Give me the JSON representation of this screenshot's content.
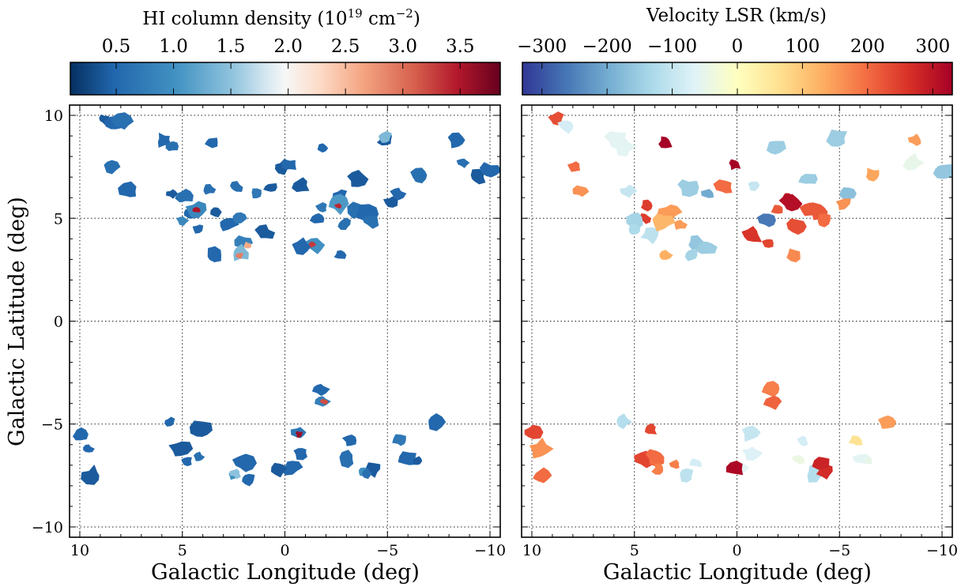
{
  "chart_data": [
    {
      "type": "scatter",
      "panel": "left",
      "xlabel": "Galactic Longitude (deg)",
      "ylabel": "Galactic Latitude (deg)",
      "xlim": [
        10.5,
        -10.5
      ],
      "ylim": [
        -10.5,
        10.5
      ],
      "xticks": [
        10,
        5,
        0,
        -5,
        -10
      ],
      "yticks": [
        10,
        5,
        0,
        -5,
        -10
      ],
      "grid": true,
      "colorbar": {
        "title_main": "HI column density (10",
        "title_sup1": "19",
        "title_mid": " cm",
        "title_sup2": "−2",
        "title_end": ")",
        "colormap": "RdBu_r",
        "range": [
          0.1,
          3.85
        ],
        "ticks": [
          0.5,
          1.0,
          1.5,
          2.0,
          2.5,
          3.0,
          3.5
        ],
        "tick_labels": [
          "0.5",
          "1.0",
          "1.5",
          "2.0",
          "2.5",
          "3.0",
          "3.5"
        ]
      },
      "clouds": [
        {
          "l": 8.8,
          "b": 9.8,
          "nh": 0.4
        },
        {
          "l": 8.3,
          "b": 9.6,
          "nh": 0.5
        },
        {
          "l": 7.9,
          "b": 9.7,
          "nh": 0.6
        },
        {
          "l": 5.9,
          "b": 8.8,
          "nh": 0.5
        },
        {
          "l": 5.5,
          "b": 8.5,
          "nh": 0.6
        },
        {
          "l": 3.6,
          "b": 8.7,
          "nh": 0.5
        },
        {
          "l": 8.5,
          "b": 7.5,
          "nh": 0.6
        },
        {
          "l": 7.6,
          "b": 6.3,
          "nh": 0.5
        },
        {
          "l": 5.5,
          "b": 6.2,
          "nh": 0.4
        },
        {
          "l": 4.9,
          "b": 6.1,
          "nh": 0.6
        },
        {
          "l": 4.7,
          "b": 5.2,
          "nh": 0.5
        },
        {
          "l": 4.3,
          "b": 5.4,
          "nh": 0.9
        },
        {
          "l": 4.3,
          "b": 5.4,
          "nh": 3.5
        },
        {
          "l": 5.0,
          "b": 4.9,
          "nh": 0.9
        },
        {
          "l": 4.2,
          "b": 4.5,
          "nh": 0.5
        },
        {
          "l": 3.3,
          "b": 5.3,
          "nh": 0.4
        },
        {
          "l": 3.7,
          "b": 6.4,
          "nh": 0.6
        },
        {
          "l": 2.4,
          "b": 6.5,
          "nh": 0.6
        },
        {
          "l": 2.8,
          "b": 4.7,
          "nh": 0.5
        },
        {
          "l": 2.2,
          "b": 5.0,
          "nh": 0.7
        },
        {
          "l": 1.4,
          "b": 6.2,
          "nh": 0.7
        },
        {
          "l": 0.7,
          "b": 6.5,
          "nh": 0.4
        },
        {
          "l": 2.0,
          "b": 3.8,
          "nh": 0.8
        },
        {
          "l": 1.8,
          "b": 3.7,
          "nh": 2.6
        },
        {
          "l": 2.2,
          "b": 3.3,
          "nh": 1.4
        },
        {
          "l": 2.2,
          "b": 3.2,
          "nh": 2.9
        },
        {
          "l": 3.5,
          "b": 3.2,
          "nh": 0.5
        },
        {
          "l": 1.0,
          "b": 4.3,
          "nh": 0.4
        },
        {
          "l": 0.1,
          "b": 7.5,
          "nh": 0.4
        },
        {
          "l": -0.2,
          "b": 7.6,
          "nh": 0.5
        },
        {
          "l": -1.8,
          "b": 8.4,
          "nh": 0.5
        },
        {
          "l": -0.8,
          "b": 6.6,
          "nh": 0.4
        },
        {
          "l": -1.8,
          "b": 5.5,
          "nh": 0.7
        },
        {
          "l": -2.7,
          "b": 6.1,
          "nh": 0.5
        },
        {
          "l": -2.6,
          "b": 5.7,
          "nh": 1.1
        },
        {
          "l": -2.6,
          "b": 5.6,
          "nh": 3.4
        },
        {
          "l": -1.6,
          "b": 5.0,
          "nh": 0.5
        },
        {
          "l": -1.5,
          "b": 3.7,
          "nh": 1.0
        },
        {
          "l": -1.3,
          "b": 3.7,
          "nh": 3.3
        },
        {
          "l": -0.8,
          "b": 3.6,
          "nh": 0.5
        },
        {
          "l": -2.7,
          "b": 3.2,
          "nh": 0.5
        },
        {
          "l": -3.5,
          "b": 6.9,
          "nh": 0.4
        },
        {
          "l": -3.6,
          "b": 5.4,
          "nh": 0.6
        },
        {
          "l": -4.0,
          "b": 5.2,
          "nh": 0.5
        },
        {
          "l": -2.9,
          "b": 4.7,
          "nh": 0.6
        },
        {
          "l": -4.2,
          "b": 4.9,
          "nh": 0.6
        },
        {
          "l": -5.2,
          "b": 5.8,
          "nh": 0.4
        },
        {
          "l": -5.5,
          "b": 6.2,
          "nh": 0.5
        },
        {
          "l": -4.9,
          "b": 8.8,
          "nh": 0.4
        },
        {
          "l": -4.9,
          "b": 8.9,
          "nh": 1.4
        },
        {
          "l": -6.6,
          "b": 7.1,
          "nh": 0.6
        },
        {
          "l": -8.4,
          "b": 8.8,
          "nh": 0.5
        },
        {
          "l": -8.7,
          "b": 7.7,
          "nh": 0.6
        },
        {
          "l": -9.4,
          "b": 7.0,
          "nh": 0.4
        },
        {
          "l": -10.0,
          "b": 7.3,
          "nh": 0.5
        },
        {
          "l": -1.7,
          "b": -3.3,
          "nh": 0.5
        },
        {
          "l": -1.8,
          "b": -3.9,
          "nh": 0.8
        },
        {
          "l": -1.9,
          "b": -3.9,
          "nh": 3.2
        },
        {
          "l": -0.7,
          "b": -5.4,
          "nh": 0.7
        },
        {
          "l": -0.7,
          "b": -5.5,
          "nh": 3.6
        },
        {
          "l": -0.8,
          "b": -6.4,
          "nh": 0.5
        },
        {
          "l": -0.3,
          "b": -7.1,
          "nh": 0.5
        },
        {
          "l": 0.3,
          "b": -7.2,
          "nh": 0.4
        },
        {
          "l": 10.0,
          "b": -5.5,
          "nh": 0.5
        },
        {
          "l": 9.6,
          "b": -6.2,
          "nh": 0.5
        },
        {
          "l": 9.4,
          "b": -7.5,
          "nh": 0.4
        },
        {
          "l": 5.6,
          "b": -4.9,
          "nh": 0.5
        },
        {
          "l": 5.1,
          "b": -6.2,
          "nh": 0.4
        },
        {
          "l": 4.8,
          "b": -6.8,
          "nh": 0.5
        },
        {
          "l": 4.2,
          "b": -6.6,
          "nh": 0.6
        },
        {
          "l": 4.1,
          "b": -5.3,
          "nh": 0.4
        },
        {
          "l": 2.5,
          "b": -7.5,
          "nh": 1.0
        },
        {
          "l": 2.4,
          "b": -7.4,
          "nh": 1.5
        },
        {
          "l": 2.0,
          "b": -6.9,
          "nh": 0.5
        },
        {
          "l": 1.8,
          "b": -7.7,
          "nh": 0.5
        },
        {
          "l": -3.0,
          "b": -6.7,
          "nh": 0.6
        },
        {
          "l": -3.2,
          "b": -5.8,
          "nh": 0.5
        },
        {
          "l": -3.8,
          "b": -7.3,
          "nh": 1.0
        },
        {
          "l": -4.3,
          "b": -7.2,
          "nh": 0.4
        },
        {
          "l": -4.0,
          "b": -7.4,
          "nh": 0.6
        },
        {
          "l": -5.6,
          "b": -5.8,
          "nh": 0.7
        },
        {
          "l": -6.0,
          "b": -6.7,
          "nh": 0.5
        },
        {
          "l": -7.3,
          "b": -4.9,
          "nh": 0.5
        },
        {
          "l": -6.5,
          "b": -6.8,
          "nh": 0.4
        }
      ]
    },
    {
      "type": "scatter",
      "panel": "right",
      "xlabel": "Galactic Longitude (deg)",
      "ylabel": "",
      "xlim": [
        10.5,
        -10.5
      ],
      "ylim": [
        -10.5,
        10.5
      ],
      "xticks": [
        10,
        5,
        0,
        -5,
        -10
      ],
      "yticks": [
        10,
        5,
        0,
        -5,
        -10
      ],
      "grid": true,
      "colorbar": {
        "title": "Velocity LSR (km/s)",
        "colormap": "RdYlBu_r",
        "range": [
          -330,
          330
        ],
        "ticks": [
          -300,
          -200,
          -100,
          0,
          100,
          200,
          300
        ],
        "tick_labels": [
          "−300",
          "−200",
          "−100",
          "0",
          "100",
          "200",
          "300"
        ]
      },
      "clouds": [
        {
          "l": 8.8,
          "b": 9.8,
          "v": 230
        },
        {
          "l": 8.3,
          "b": 9.5,
          "v": -80
        },
        {
          "l": 5.9,
          "b": 8.8,
          "v": -60
        },
        {
          "l": 5.5,
          "b": 8.5,
          "v": -60
        },
        {
          "l": 3.5,
          "b": 8.7,
          "v": 330
        },
        {
          "l": 7.6,
          "b": 6.3,
          "v": 160
        },
        {
          "l": 7.9,
          "b": 7.5,
          "v": 200
        },
        {
          "l": 4.4,
          "b": 5.6,
          "v": 250
        },
        {
          "l": 4.5,
          "b": 5.0,
          "v": 250
        },
        {
          "l": 4.9,
          "b": 4.9,
          "v": -140
        },
        {
          "l": 5.0,
          "b": 4.4,
          "v": -130
        },
        {
          "l": 4.2,
          "b": 4.2,
          "v": -110
        },
        {
          "l": 5.3,
          "b": 6.3,
          "v": -100
        },
        {
          "l": 3.3,
          "b": 5.3,
          "v": 150
        },
        {
          "l": 3.6,
          "b": 4.8,
          "v": 120
        },
        {
          "l": 2.8,
          "b": 4.7,
          "v": 150
        },
        {
          "l": 2.4,
          "b": 6.5,
          "v": -150
        },
        {
          "l": 1.4,
          "b": 6.2,
          "v": -200
        },
        {
          "l": 0.6,
          "b": 6.5,
          "v": 200
        },
        {
          "l": 2.0,
          "b": 3.8,
          "v": -160
        },
        {
          "l": 2.2,
          "b": 3.2,
          "v": -140
        },
        {
          "l": 1.5,
          "b": 3.6,
          "v": -150
        },
        {
          "l": 3.5,
          "b": 3.2,
          "v": 130
        },
        {
          "l": 0.1,
          "b": 7.6,
          "v": 330
        },
        {
          "l": -1.8,
          "b": 8.4,
          "v": -150
        },
        {
          "l": -2.0,
          "b": 5.4,
          "v": 220
        },
        {
          "l": -2.5,
          "b": 6.0,
          "v": 300
        },
        {
          "l": -2.6,
          "b": 5.7,
          "v": 310
        },
        {
          "l": -1.5,
          "b": 3.8,
          "v": 240
        },
        {
          "l": -0.7,
          "b": 4.2,
          "v": 260
        },
        {
          "l": -0.8,
          "b": 6.6,
          "v": -100
        },
        {
          "l": -1.5,
          "b": 4.9,
          "v": -260
        },
        {
          "l": -2.8,
          "b": 3.2,
          "v": 170
        },
        {
          "l": -3.5,
          "b": 6.9,
          "v": -150
        },
        {
          "l": -3.5,
          "b": 5.4,
          "v": 220
        },
        {
          "l": -4.0,
          "b": 5.3,
          "v": 220
        },
        {
          "l": -2.9,
          "b": 4.6,
          "v": 230
        },
        {
          "l": -4.2,
          "b": 4.9,
          "v": 200
        },
        {
          "l": -5.4,
          "b": 6.2,
          "v": -170
        },
        {
          "l": -5.2,
          "b": 5.7,
          "v": 160
        },
        {
          "l": -4.9,
          "b": 8.9,
          "v": -150
        },
        {
          "l": -6.6,
          "b": 7.1,
          "v": 140
        },
        {
          "l": -8.7,
          "b": 8.8,
          "v": 150
        },
        {
          "l": -8.6,
          "b": 7.7,
          "v": -50
        },
        {
          "l": -10.0,
          "b": 7.3,
          "v": -160
        },
        {
          "l": -1.7,
          "b": -3.3,
          "v": 180
        },
        {
          "l": -1.8,
          "b": -3.9,
          "v": 210
        },
        {
          "l": -0.7,
          "b": -5.4,
          "v": -100
        },
        {
          "l": -0.7,
          "b": -6.4,
          "v": -70
        },
        {
          "l": -0.3,
          "b": -7.1,
          "v": -60
        },
        {
          "l": 0.1,
          "b": -7.2,
          "v": 320
        },
        {
          "l": 10.0,
          "b": -5.4,
          "v": 240
        },
        {
          "l": 9.6,
          "b": -6.2,
          "v": 160
        },
        {
          "l": 9.5,
          "b": -7.5,
          "v": 200
        },
        {
          "l": 5.6,
          "b": -4.9,
          "v": -120
        },
        {
          "l": 4.5,
          "b": -6.7,
          "v": 240
        },
        {
          "l": 4.2,
          "b": -5.3,
          "v": 240
        },
        {
          "l": 4.0,
          "b": -6.6,
          "v": 200
        },
        {
          "l": 3.8,
          "b": -7.2,
          "v": 180
        },
        {
          "l": 2.5,
          "b": -7.5,
          "v": -110
        },
        {
          "l": 2.0,
          "b": -6.9,
          "v": -80
        },
        {
          "l": 3.0,
          "b": -7.0,
          "v": 180
        },
        {
          "l": -3.2,
          "b": -5.8,
          "v": -80
        },
        {
          "l": -3.0,
          "b": -6.7,
          "v": -40
        },
        {
          "l": -3.8,
          "b": -7.4,
          "v": -120
        },
        {
          "l": -4.3,
          "b": -7.3,
          "v": 270
        },
        {
          "l": -4.2,
          "b": -6.9,
          "v": 280
        },
        {
          "l": -5.8,
          "b": -5.8,
          "v": 60
        },
        {
          "l": -6.0,
          "b": -6.7,
          "v": -60
        },
        {
          "l": -7.3,
          "b": -4.9,
          "v": 150
        },
        {
          "l": -6.4,
          "b": -6.8,
          "v": -50
        }
      ]
    }
  ]
}
